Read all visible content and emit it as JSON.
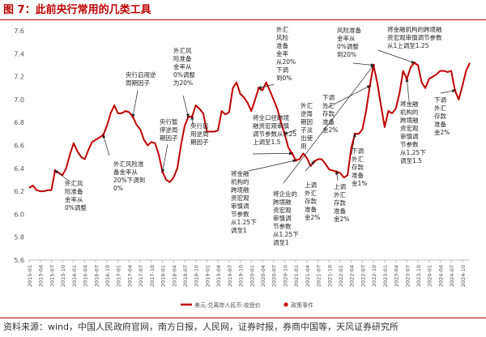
{
  "figure_title": "图 7：此前央行常用的几类工具",
  "source_text": "资料来源：wind，中国人民政府官网，南方日报，人民网，证券时报，券商中国等，天风证券研究所",
  "colors": {
    "accent": "#c00000",
    "series": "#c00000",
    "grid": "#e6e6e6",
    "arrow": "#222222"
  },
  "chart_data": {
    "type": "line",
    "title": "",
    "xlabel": "",
    "ylabel": "",
    "ylim": [
      5.6,
      7.6
    ],
    "yticks": [
      "5.6",
      "5.8",
      "6.0",
      "6.2",
      "6.4",
      "6.6",
      "6.8",
      "7.0",
      "7.2",
      "7.4",
      "7.6"
    ],
    "xticks": [
      "2015-01",
      "2015-04",
      "2015-07",
      "2015-10",
      "2016-01",
      "2016-04",
      "2016-07",
      "2016-10",
      "2017-01",
      "2017-04",
      "2017-07",
      "2017-10",
      "2018-01",
      "2018-04",
      "2018-07",
      "2018-10",
      "2019-01",
      "2019-04",
      "2019-07",
      "2019-10",
      "2020-01",
      "2020-04",
      "2020-07",
      "2020-10",
      "2021-01",
      "2021-04",
      "2021-07",
      "2021-10",
      "2022-01",
      "2022-04",
      "2022-07",
      "2022-10",
      "2023-01",
      "2023-04",
      "2023-07",
      "2023-10",
      "2024-01",
      "2024-04",
      "2024-07",
      "2024-10"
    ],
    "grid": false,
    "legend_position": "bottom-center",
    "series": [
      {
        "name": "美元:兑离岸人民币:收盘价",
        "x": [
          "2015-01",
          "2015-02",
          "2015-03",
          "2015-04",
          "2015-05",
          "2015-06",
          "2015-07",
          "2015-08",
          "2015-09",
          "2015-10",
          "2015-11",
          "2015-12",
          "2016-01",
          "2016-02",
          "2016-03",
          "2016-04",
          "2016-05",
          "2016-06",
          "2016-07",
          "2016-08",
          "2016-09",
          "2016-10",
          "2016-11",
          "2016-12",
          "2017-01",
          "2017-02",
          "2017-03",
          "2017-04",
          "2017-05",
          "2017-06",
          "2017-07",
          "2017-08",
          "2017-09",
          "2017-10",
          "2017-11",
          "2017-12",
          "2018-01",
          "2018-02",
          "2018-03",
          "2018-04",
          "2018-05",
          "2018-06",
          "2018-07",
          "2018-08",
          "2018-09",
          "2018-10",
          "2018-11",
          "2018-12",
          "2019-01",
          "2019-02",
          "2019-03",
          "2019-04",
          "2019-05",
          "2019-06",
          "2019-07",
          "2019-08",
          "2019-09",
          "2019-10",
          "2019-11",
          "2019-12",
          "2020-01",
          "2020-02",
          "2020-03",
          "2020-04",
          "2020-05",
          "2020-06",
          "2020-07",
          "2020-08",
          "2020-09",
          "2020-10",
          "2020-11",
          "2020-12",
          "2021-01",
          "2021-02",
          "2021-03",
          "2021-04",
          "2021-05",
          "2021-06",
          "2021-07",
          "2021-08",
          "2021-09",
          "2021-10",
          "2021-11",
          "2021-12",
          "2022-01",
          "2022-02",
          "2022-03",
          "2022-04",
          "2022-05",
          "2022-06",
          "2022-07",
          "2022-08",
          "2022-09",
          "2022-10",
          "2022-11",
          "2022-12",
          "2023-01",
          "2023-02",
          "2023-03",
          "2023-04",
          "2023-05",
          "2023-06",
          "2023-07",
          "2023-08",
          "2023-09",
          "2023-10",
          "2023-11",
          "2023-12",
          "2024-01",
          "2024-02",
          "2024-03",
          "2024-04",
          "2024-05",
          "2024-06",
          "2024-07",
          "2024-08",
          "2024-09",
          "2024-10",
          "2024-11",
          "2024-12"
        ],
        "values": [
          6.23,
          6.25,
          6.21,
          6.2,
          6.2,
          6.21,
          6.21,
          6.38,
          6.36,
          6.34,
          6.4,
          6.52,
          6.62,
          6.55,
          6.5,
          6.48,
          6.56,
          6.63,
          6.65,
          6.67,
          6.69,
          6.77,
          6.88,
          6.95,
          6.88,
          6.88,
          6.9,
          6.89,
          6.85,
          6.78,
          6.74,
          6.65,
          6.6,
          6.63,
          6.62,
          6.52,
          6.37,
          6.3,
          6.28,
          6.32,
          6.4,
          6.6,
          6.77,
          6.85,
          6.85,
          6.95,
          6.92,
          6.88,
          6.72,
          6.72,
          6.72,
          6.73,
          6.9,
          6.87,
          6.89,
          7.1,
          7.15,
          7.05,
          7.02,
          6.97,
          6.9,
          7.0,
          7.1,
          7.08,
          7.15,
          7.08,
          7.0,
          6.92,
          6.8,
          6.7,
          6.58,
          6.53,
          6.47,
          6.48,
          6.53,
          6.49,
          6.42,
          6.46,
          6.48,
          6.48,
          6.44,
          6.39,
          6.38,
          6.37,
          6.36,
          6.32,
          6.34,
          6.58,
          6.7,
          6.7,
          6.74,
          6.9,
          7.12,
          7.3,
          7.15,
          6.95,
          6.76,
          6.9,
          6.88,
          6.92,
          7.05,
          7.25,
          7.18,
          7.28,
          7.32,
          7.3,
          7.15,
          7.1,
          7.18,
          7.2,
          7.22,
          7.25,
          7.25,
          7.24,
          7.25,
          7.08,
          7.0,
          7.12,
          7.25,
          7.32
        ]
      }
    ],
    "event_series": {
      "name": "政策事件",
      "events": [
        {
          "date": "2015-08",
          "y": 6.38,
          "label": "外汇风险准备金率从0%调整"
        },
        {
          "date": "2016-09",
          "y": 6.69,
          "label": "外汇风险准备金率从20%下调到0%"
        },
        {
          "date": "2017-05",
          "y": 6.85,
          "label": "央行启用逆周期因子"
        },
        {
          "date": "2018-01",
          "y": 6.37,
          "label": "央行暂停逆周期因子"
        },
        {
          "date": "2018-08",
          "y": 6.85,
          "label": "外汇风险准备金率从0%调整为20%"
        },
        {
          "date": "2018-09",
          "y": 6.85,
          "label": "央行启用逆周期因子"
        },
        {
          "date": "2020-03",
          "y": 7.1,
          "label": "外汇风险准备金率从20%下调到0%"
        },
        {
          "date": "2020-10",
          "y": 6.7,
          "label": "外汇逆周期因子淡出使用"
        },
        {
          "date": "2020-12",
          "y": 6.53,
          "label": "将全口径跨境融资宏观审慎调节参数从1.25上调至1.5"
        },
        {
          "date": "2021-01",
          "y": 6.47,
          "label": "将金融机构的跨境融资宏观审慎调节参数从1.25下调至1"
        },
        {
          "date": "2021-06",
          "y": 6.46,
          "label": "上调外汇存款准备金2%"
        },
        {
          "date": "2021-12",
          "y": 6.37,
          "label": "上调外汇存款准备金2%"
        },
        {
          "date": "2022-05",
          "y": 6.7,
          "label": "下调外汇存款准备金1%"
        },
        {
          "date": "2022-09",
          "y": 7.12,
          "label": "下调外汇存款准备金2%"
        },
        {
          "date": "2022-10",
          "y": 7.3,
          "label": "风险准备金率从0%调整到20%"
        },
        {
          "date": "2022-10",
          "y": 7.3,
          "label": "将企业的跨境融资宏观审慎调节参数从1.25下调至1"
        },
        {
          "date": "2023-07",
          "y": 7.18,
          "label": "将金融机构的跨境融资宏观审慎调节参数从1.25下调至1.5"
        },
        {
          "date": "2023-09",
          "y": 7.32,
          "label": "将金融机构的跨境融资宏观审慎调节参数从1上调至1.25"
        },
        {
          "date": "2024-08",
          "y": 7.08,
          "label": "下调外汇存款准备金2%"
        }
      ]
    },
    "annotations": [
      {
        "text": "外汇风险准备金率从0%调整"
      },
      {
        "text": "外汇风险准备金率从20%下调到0%"
      },
      {
        "text": "央行启用逆周期因子"
      },
      {
        "text": "央行暂停逆周期因子"
      },
      {
        "text": "外汇风险准备金率从0%调整为20%"
      },
      {
        "text": "央行启用逆周期因子"
      },
      {
        "text": "外汇风险准备金率从20%下调到0%"
      },
      {
        "text": "外汇逆周期因子淡出使用"
      },
      {
        "text": "将全口径跨境融资宏观审慎调节参数从1.25上调至1.5"
      },
      {
        "text": "将金融机构的跨境融资宏观审慎调节参数从1.25下调至1"
      },
      {
        "text": "将企业的跨境融资宏观审慎调节参数从1.25下调至1"
      },
      {
        "text": "上调外汇存款准备金2%"
      },
      {
        "text": "上调外汇存款准备金2%"
      },
      {
        "text": "下调外汇存款准备金1%"
      },
      {
        "text": "下调外汇存款准备金2%"
      },
      {
        "text": "风险准备金率从0%调整到20%"
      },
      {
        "text": "将金融机构的跨境融资宏观审慎调节参数从1上调至1.25"
      },
      {
        "text": "将金融机构的跨境融资宏观审慎调节参数从1.25下调至1.5"
      },
      {
        "text": "下调外汇存款准备金2%"
      }
    ]
  }
}
